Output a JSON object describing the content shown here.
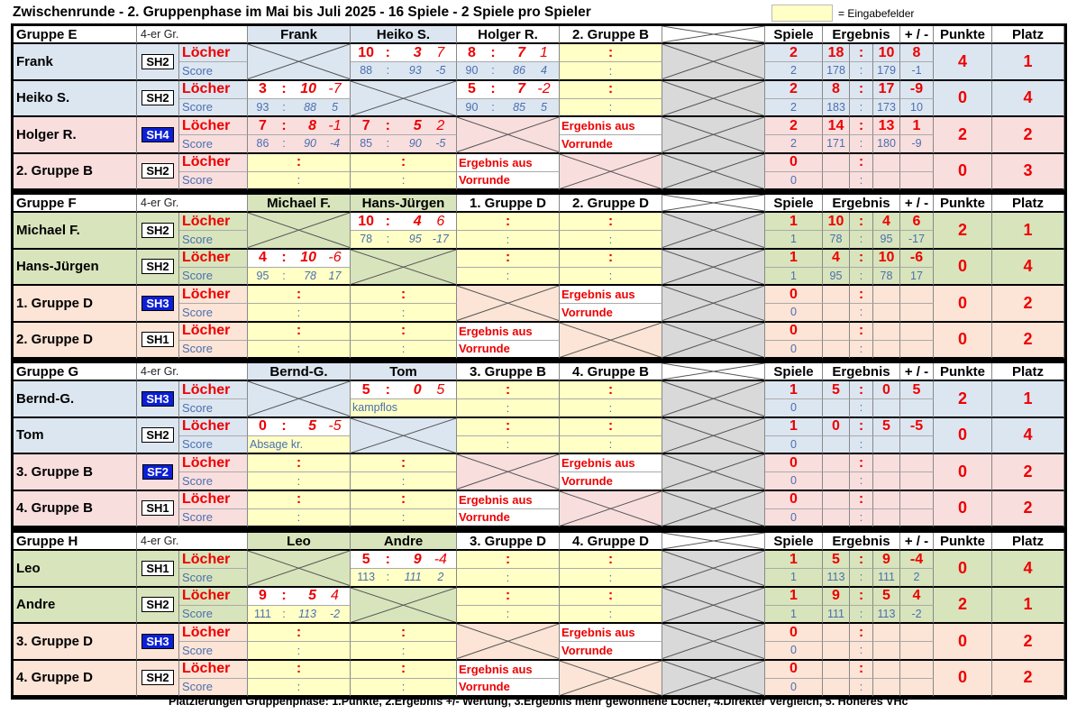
{
  "title": "Zwischenrunde  -  2. Gruppenphase im Mai bis Juli 2025  -  16 Spiele  -  2 Spiele pro Spieler",
  "legend": "= Eingabefelder",
  "footer": "Platzierungen Gruppenphase: 1.Punkte, 2.Ergebnis +/- Wertung, 3.Ergebnis mehr gewonnene Löcher, 4.Direkter Vergleich, 5. Höheres VHc",
  "headers": {
    "grp": "4-er Gr.",
    "spiele": "Spiele",
    "ergebnis": "Ergebnis",
    "diff": "+ / -",
    "punkte": "Punkte",
    "platz": "Platz",
    "locher": "Löcher",
    "score": "Score",
    "colon": ":",
    "ergebnis_aus": "Ergebnis aus",
    "vorrunde": "Vorrunde"
  },
  "groups": [
    {
      "name": "Gruppe E",
      "cols": [
        "Frank",
        "Heiko S.",
        "Holger R.",
        "2. Gruppe B"
      ],
      "players": [
        {
          "name": "Frank",
          "hc": "SH2",
          "hcblue": false,
          "stats": {
            "spiele": "2",
            "e1": "18",
            "e2": "10",
            "diff": "8",
            "s_sp": "2",
            "s1": "178",
            "s2": "179",
            "sd": "-1",
            "punkte": "4",
            "platz": "1"
          }
        },
        {
          "name": "Heiko S.",
          "hc": "SH2",
          "hcblue": false,
          "stats": {
            "spiele": "2",
            "e1": "8",
            "e2": "17",
            "diff": "-9",
            "s_sp": "2",
            "s1": "183",
            "s2": "173",
            "sd": "10",
            "punkte": "0",
            "platz": "4"
          }
        },
        {
          "name": "Holger R.",
          "hc": "SH4",
          "hcblue": true,
          "stats": {
            "spiele": "2",
            "e1": "14",
            "e2": "13",
            "diff": "1",
            "s_sp": "2",
            "s1": "171",
            "s2": "180",
            "sd": "-9",
            "punkte": "2",
            "platz": "2"
          }
        },
        {
          "name": "2. Gruppe B",
          "hc": "SH2",
          "hcblue": false,
          "stats": {
            "spiele": "0",
            "e1": "",
            ":": "",
            "e2": "",
            "diff": "",
            "s_sp": "0",
            "s1": "",
            "s2": "",
            "sd": "",
            "punkte": "0",
            "platz": "3"
          }
        }
      ],
      "matches": {
        "0-1": {
          "a": "10",
          "b": "3",
          "d": "7",
          "sa": "88",
          "sb": "93",
          "sd": "-5"
        },
        "0-2": {
          "a": "8",
          "b": "7",
          "d": "1",
          "sa": "90",
          "sb": "86",
          "sd": "4"
        },
        "1-0": {
          "a": "3",
          "b": "10",
          "d": "-7",
          "sa": "93",
          "sb": "88",
          "sd": "5"
        },
        "1-2": {
          "a": "5",
          "b": "7",
          "d": "-2",
          "sa": "90",
          "sb": "85",
          "sd": "5"
        },
        "2-0": {
          "a": "7",
          "b": "8",
          "d": "-1",
          "sa": "86",
          "sb": "90",
          "sd": "-4"
        },
        "2-1": {
          "a": "7",
          "b": "5",
          "d": "2",
          "sa": "85",
          "sb": "90",
          "sd": "-5"
        }
      }
    },
    {
      "name": "Gruppe F",
      "cols": [
        "Michael F.",
        "Hans-Jürgen",
        "1. Gruppe D",
        "2. Gruppe D"
      ],
      "players": [
        {
          "name": "Michael F.",
          "hc": "SH2",
          "hcblue": false,
          "stats": {
            "spiele": "1",
            "e1": "10",
            "e2": "4",
            "diff": "6",
            "s_sp": "1",
            "s1": "78",
            "s2": "95",
            "sd": "-17",
            "punkte": "2",
            "platz": "1"
          }
        },
        {
          "name": "Hans-Jürgen",
          "hc": "SH2",
          "hcblue": false,
          "stats": {
            "spiele": "1",
            "e1": "4",
            "e2": "10",
            "diff": "-6",
            "s_sp": "1",
            "s1": "95",
            "s2": "78",
            "sd": "17",
            "punkte": "0",
            "platz": "4"
          }
        },
        {
          "name": "1. Gruppe D",
          "hc": "SH3",
          "hcblue": true,
          "stats": {
            "spiele": "0",
            "e1": "",
            "e2": "",
            "diff": "",
            "s_sp": "0",
            "s1": "",
            "s2": "",
            "sd": "",
            "punkte": "0",
            "platz": "2"
          }
        },
        {
          "name": "2. Gruppe D",
          "hc": "SH1",
          "hcblue": false,
          "stats": {
            "spiele": "0",
            "e1": "",
            "e2": "",
            "diff": "",
            "s_sp": "0",
            "s1": "",
            "s2": "",
            "sd": "",
            "punkte": "0",
            "platz": "2"
          }
        }
      ],
      "matches": {
        "0-1": {
          "a": "10",
          "b": "4",
          "d": "6",
          "sa": "78",
          "sb": "95",
          "sd": "-17"
        },
        "1-0": {
          "a": "4",
          "b": "10",
          "d": "-6",
          "sa": "95",
          "sb": "78",
          "sd": "17"
        }
      }
    },
    {
      "name": "Gruppe G",
      "cols": [
        "Bernd-G.",
        "Tom",
        "3. Gruppe B",
        "4. Gruppe B"
      ],
      "players": [
        {
          "name": "Bernd-G.",
          "hc": "SH3",
          "hcblue": true,
          "stats": {
            "spiele": "1",
            "e1": "5",
            "e2": "0",
            "diff": "5",
            "s_sp": "0",
            "s1": "",
            "s2": "",
            "sd": "",
            "punkte": "2",
            "platz": "1"
          }
        },
        {
          "name": "Tom",
          "hc": "SH2",
          "hcblue": false,
          "stats": {
            "spiele": "1",
            "e1": "0",
            "e2": "5",
            "diff": "-5",
            "s_sp": "0",
            "s1": "",
            "s2": "",
            "sd": "",
            "punkte": "0",
            "platz": "4"
          }
        },
        {
          "name": "3. Gruppe B",
          "hc": "SF2",
          "hcblue": true,
          "stats": {
            "spiele": "0",
            "e1": "",
            "e2": "",
            "diff": "",
            "s_sp": "0",
            "s1": "",
            "s2": "",
            "sd": "",
            "punkte": "0",
            "platz": "2"
          }
        },
        {
          "name": "4. Gruppe B",
          "hc": "SH1",
          "hcblue": false,
          "stats": {
            "spiele": "0",
            "e1": "",
            "e2": "",
            "diff": "",
            "s_sp": "0",
            "s1": "",
            "s2": "",
            "sd": "",
            "punkte": "0",
            "platz": "2"
          }
        }
      ],
      "matches": {
        "0-1": {
          "a": "5",
          "b": "0",
          "d": "5",
          "note": "kampflos"
        },
        "1-0": {
          "a": "0",
          "b": "5",
          "d": "-5",
          "note": "Absage kr."
        }
      }
    },
    {
      "name": "Gruppe H",
      "cols": [
        "Leo",
        "Andre",
        "3. Gruppe D",
        "4. Gruppe D"
      ],
      "players": [
        {
          "name": "Leo",
          "hc": "SH1",
          "hcblue": false,
          "stats": {
            "spiele": "1",
            "e1": "5",
            "e2": "9",
            "diff": "-4",
            "s_sp": "1",
            "s1": "113",
            "s2": "111",
            "sd": "2",
            "punkte": "0",
            "platz": "4"
          }
        },
        {
          "name": "Andre",
          "hc": "SH2",
          "hcblue": false,
          "stats": {
            "spiele": "1",
            "e1": "9",
            "e2": "5",
            "diff": "4",
            "s_sp": "1",
            "s1": "111",
            "s2": "113",
            "sd": "-2",
            "punkte": "2",
            "platz": "1"
          }
        },
        {
          "name": "3. Gruppe D",
          "hc": "SH3",
          "hcblue": true,
          "stats": {
            "spiele": "0",
            "e1": "",
            "e2": "",
            "diff": "",
            "s_sp": "0",
            "s1": "",
            "s2": "",
            "sd": "",
            "punkte": "0",
            "platz": "2"
          }
        },
        {
          "name": "4. Gruppe D",
          "hc": "SH2",
          "hcblue": false,
          "stats": {
            "spiele": "0",
            "e1": "",
            "e2": "",
            "diff": "",
            "s_sp": "0",
            "s1": "",
            "s2": "",
            "sd": "",
            "punkte": "0",
            "platz": "2"
          }
        }
      ],
      "matches": {
        "0-1": {
          "a": "5",
          "b": "9",
          "d": "-4",
          "sa": "113",
          "sb": "111",
          "sd": "2"
        },
        "1-0": {
          "a": "9",
          "b": "5",
          "d": "4",
          "sa": "111",
          "sb": "113",
          "sd": "-2"
        }
      }
    }
  ]
}
